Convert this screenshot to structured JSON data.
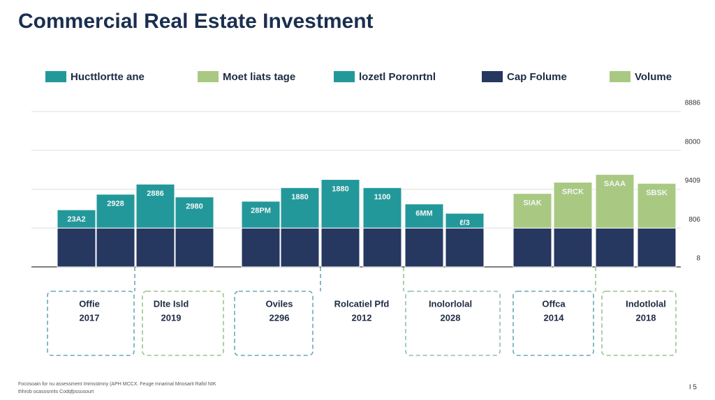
{
  "chart_data": {
    "type": "stacked_bar",
    "title": "Commercial Real Estate Investment",
    "categories": [
      null,
      null,
      null,
      null,
      null,
      null,
      null,
      null,
      null,
      null,
      null,
      null,
      null,
      null
    ],
    "series": [
      {
        "name": "Cap Folume",
        "color": "#263760",
        "values": [
          1,
          1,
          1,
          1,
          1,
          1,
          1,
          1,
          1,
          1,
          1,
          1,
          1,
          1
        ]
      },
      {
        "name": "Hucttlortte ane",
        "color": "#23989a",
        "values": [
          0.47,
          0.87,
          1.13,
          0.8,
          null,
          null,
          null,
          null,
          null,
          null,
          null,
          null,
          null,
          null
        ]
      },
      {
        "name": "Moet liats tage",
        "color": "#a9c983",
        "values": [
          null,
          null,
          null,
          null,
          null,
          null,
          null,
          null,
          null,
          null,
          null,
          null,
          null,
          null
        ]
      },
      {
        "name": "lozetl Poronrtnl",
        "color": "#23989a",
        "values": [
          null,
          null,
          null,
          null,
          0.69,
          1.04,
          1.25,
          1.04,
          0.62,
          0.38,
          null,
          null,
          null,
          null
        ]
      },
      {
        "name": "Volume",
        "color": "#a9c983",
        "values": [
          null,
          null,
          null,
          null,
          null,
          null,
          null,
          null,
          null,
          null,
          0.89,
          1.18,
          1.38,
          1.15
        ]
      }
    ],
    "bar_labels": [
      "23A2",
      "2928",
      "2886",
      "2980",
      "28PM",
      "1880",
      "1880",
      "1100",
      "6MM",
      "ℓ/3",
      "SIAK",
      "SRCK",
      "SAAA",
      "SBSK"
    ],
    "ylim": [
      0,
      4
    ],
    "yticks": [
      {
        "value": 0,
        "label": "8"
      },
      {
        "value": 1,
        "label": "806"
      },
      {
        "value": 2,
        "label": "9409"
      },
      {
        "value": 3,
        "label": "8000"
      },
      {
        "value": 4,
        "label": "8886"
      }
    ],
    "grid": true,
    "groups": [
      {
        "name": "Offie",
        "year": "2017"
      },
      {
        "name": "Dlte Isld",
        "year": "2019"
      },
      {
        "name": "Oviles",
        "year": "2296"
      },
      {
        "name": "Rolcatiel Pfd",
        "year": "2012"
      },
      {
        "name": "Inolorlolal",
        "year": "2028"
      },
      {
        "name": "Offca",
        "year": "2014"
      },
      {
        "name": "Indotlolal",
        "year": "2018"
      }
    ],
    "footer": {
      "source": [
        "Focosoain for nu assessment Immsstmny (APH MCCX. Feuge mnarinal Mnosarit Rafol NIK",
        "thhrob ocasosnrits  Codqfpssusourt"
      ],
      "page": "I 5"
    }
  }
}
